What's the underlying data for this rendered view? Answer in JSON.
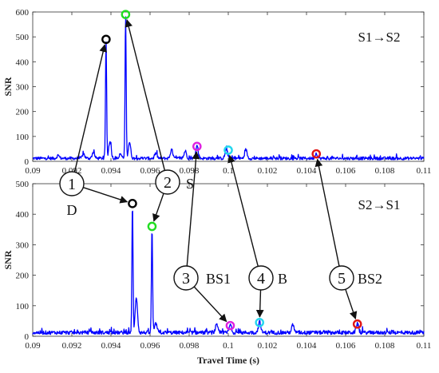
{
  "colors": {
    "signal": "#0000ff",
    "D": "#000000",
    "S": "#22dd22",
    "BS1": "#e020e0",
    "B": "#22d6ee",
    "BS2": "#e01515",
    "axis": "#333333",
    "text": "#111111"
  },
  "chart_data": [
    {
      "type": "line",
      "title": "S1→S2",
      "xlabel": "",
      "ylabel": "SNR",
      "xlim": [
        0.09,
        0.11
      ],
      "ylim": [
        0,
        600
      ],
      "xticks": [
        "0.09",
        "0.092",
        "0.094",
        "0.096",
        "0.098",
        "0.1",
        "0.102",
        "0.104",
        "0.106",
        "0.108",
        "0.11"
      ],
      "yticks": [
        "0",
        "100",
        "200",
        "300",
        "400",
        "500",
        "600"
      ],
      "grid": false,
      "peaks": [
        {
          "x": 0.0913,
          "y": 22
        },
        {
          "x": 0.0926,
          "y": 28
        },
        {
          "x": 0.0931,
          "y": 35
        },
        {
          "x": 0.09375,
          "y": 490
        },
        {
          "x": 0.09395,
          "y": 80
        },
        {
          "x": 0.0945,
          "y": 25
        },
        {
          "x": 0.09475,
          "y": 590
        },
        {
          "x": 0.09495,
          "y": 75
        },
        {
          "x": 0.0963,
          "y": 30
        },
        {
          "x": 0.0971,
          "y": 45
        },
        {
          "x": 0.0978,
          "y": 40
        },
        {
          "x": 0.0984,
          "y": 60
        },
        {
          "x": 0.0999,
          "y": 48
        },
        {
          "x": 0.1009,
          "y": 45
        },
        {
          "x": 0.1045,
          "y": 30
        }
      ],
      "markers": [
        {
          "key": "D",
          "x": 0.09375,
          "y": 490
        },
        {
          "key": "S",
          "x": 0.09475,
          "y": 590
        },
        {
          "key": "BS1",
          "x": 0.0984,
          "y": 60
        },
        {
          "key": "B",
          "x": 0.1,
          "y": 45
        },
        {
          "key": "BS2",
          "x": 0.1045,
          "y": 30
        }
      ]
    },
    {
      "type": "line",
      "title": "S2→S1",
      "xlabel": "Travel Time (s)",
      "ylabel": "SNR",
      "xlim": [
        0.09,
        0.11
      ],
      "ylim": [
        0,
        500
      ],
      "xticks": [
        "0.09",
        "0.092",
        "0.094",
        "0.096",
        "0.098",
        "0.1",
        "0.102",
        "0.104",
        "0.106",
        "0.108",
        "0.11"
      ],
      "yticks": [
        "0",
        "100",
        "200",
        "300",
        "400",
        "500"
      ],
      "grid": false,
      "peaks": [
        {
          "x": 0.0951,
          "y": 435
        },
        {
          "x": 0.0953,
          "y": 125
        },
        {
          "x": 0.0961,
          "y": 360
        },
        {
          "x": 0.0963,
          "y": 40
        },
        {
          "x": 0.0994,
          "y": 35
        },
        {
          "x": 0.1001,
          "y": 35
        },
        {
          "x": 0.1016,
          "y": 45
        },
        {
          "x": 0.1033,
          "y": 35
        },
        {
          "x": 0.1066,
          "y": 40
        }
      ],
      "markers": [
        {
          "key": "D",
          "x": 0.0951,
          "y": 435
        },
        {
          "key": "S",
          "x": 0.0961,
          "y": 360
        },
        {
          "key": "BS1",
          "x": 0.1001,
          "y": 35
        },
        {
          "key": "B",
          "x": 0.1016,
          "y": 45
        },
        {
          "key": "BS2",
          "x": 0.1066,
          "y": 40
        }
      ]
    }
  ],
  "annotations": [
    {
      "num": "1",
      "label": "D",
      "key": "D"
    },
    {
      "num": "2",
      "label": "S",
      "key": "S"
    },
    {
      "num": "3",
      "label": "BS1",
      "key": "BS1"
    },
    {
      "num": "4",
      "label": "B",
      "key": "B"
    },
    {
      "num": "5",
      "label": "BS2",
      "key": "BS2"
    }
  ]
}
